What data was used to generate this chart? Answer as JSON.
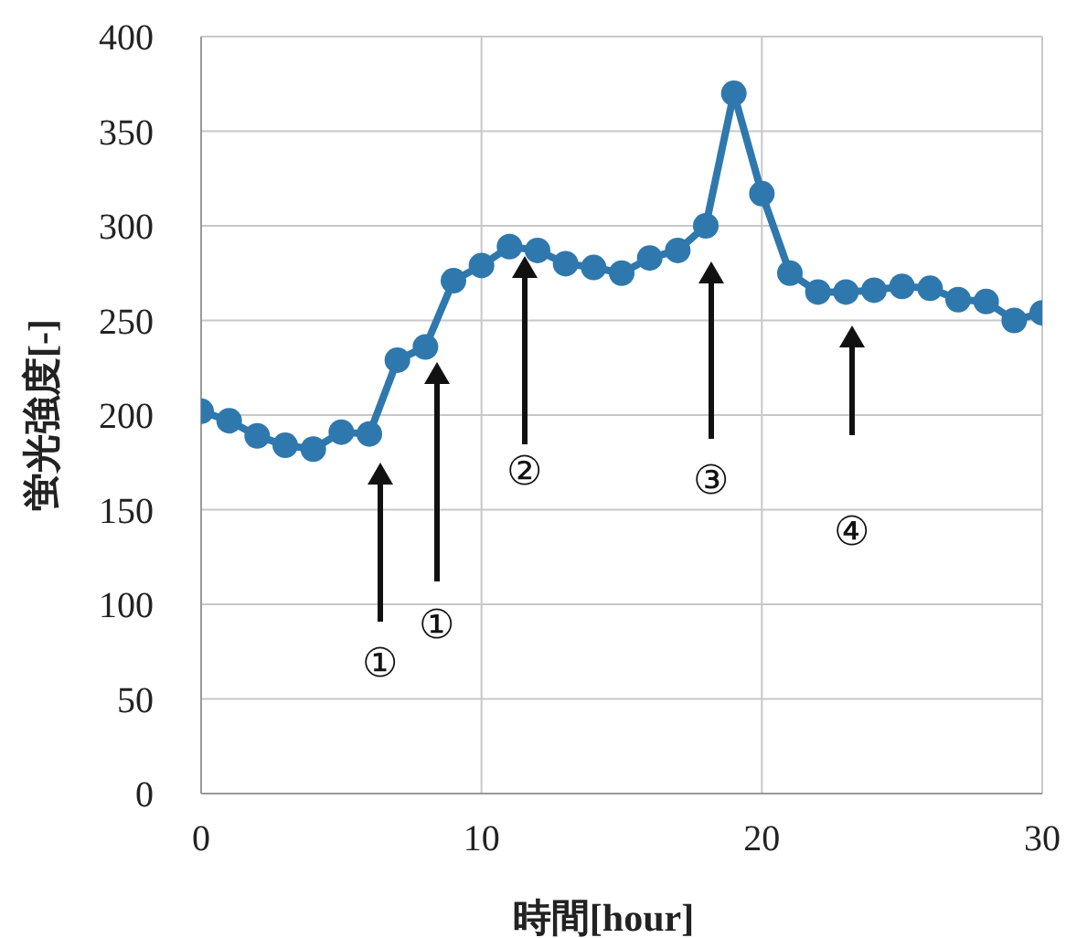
{
  "chart_data": {
    "type": "line",
    "xlabel": "時間[hour]",
    "ylabel": "蛍光強度[-]",
    "x": [
      0,
      1,
      2,
      3,
      4,
      5,
      6,
      7,
      8,
      9,
      10,
      11,
      12,
      13,
      14,
      15,
      16,
      17,
      18,
      19,
      20,
      21,
      22,
      23,
      24,
      25,
      26,
      27,
      28,
      29,
      30
    ],
    "series": [
      {
        "color": "#2f78ad",
        "values": [
          202,
          197,
          189,
          184,
          182,
          191,
          190,
          229,
          236,
          271,
          279,
          289,
          287,
          280,
          278,
          275,
          283,
          287,
          300,
          370,
          317,
          275,
          265,
          265,
          266,
          268,
          267,
          261,
          260,
          250,
          254
        ]
      }
    ],
    "xlim": [
      0,
      30
    ],
    "xticks": [
      0,
      10,
      20,
      30
    ],
    "ylim": [
      0,
      400
    ],
    "yticks": [
      0,
      50,
      100,
      150,
      200,
      250,
      300,
      350,
      400
    ],
    "grid": true,
    "marker": "circle",
    "line_style": "solid",
    "annotations": [
      "①",
      "①",
      "②",
      "③",
      "④"
    ]
  }
}
